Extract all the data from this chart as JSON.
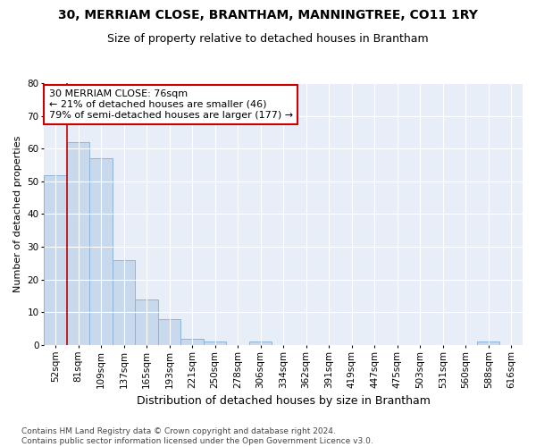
{
  "title": "30, MERRIAM CLOSE, BRANTHAM, MANNINGTREE, CO11 1RY",
  "subtitle": "Size of property relative to detached houses in Brantham",
  "xlabel": "Distribution of detached houses by size in Brantham",
  "ylabel": "Number of detached properties",
  "categories": [
    "52sqm",
    "81sqm",
    "109sqm",
    "137sqm",
    "165sqm",
    "193sqm",
    "221sqm",
    "250sqm",
    "278sqm",
    "306sqm",
    "334sqm",
    "362sqm",
    "391sqm",
    "419sqm",
    "447sqm",
    "475sqm",
    "503sqm",
    "531sqm",
    "560sqm",
    "588sqm",
    "616sqm"
  ],
  "values": [
    52,
    62,
    57,
    26,
    14,
    8,
    2,
    1,
    0,
    1,
    0,
    0,
    0,
    0,
    0,
    0,
    0,
    0,
    0,
    1,
    0
  ],
  "bar_color": "#c8d9ee",
  "bar_edge_color": "#8db4d8",
  "vline_color": "#cc0000",
  "vline_x_index": 0.5,
  "annotation_text": "30 MERRIAM CLOSE: 76sqm\n← 21% of detached houses are smaller (46)\n79% of semi-detached houses are larger (177) →",
  "annotation_box_color": "#cc0000",
  "ylim": [
    0,
    80
  ],
  "yticks": [
    0,
    10,
    20,
    30,
    40,
    50,
    60,
    70,
    80
  ],
  "footnote": "Contains HM Land Registry data © Crown copyright and database right 2024.\nContains public sector information licensed under the Open Government Licence v3.0.",
  "bg_color": "#e8eef8",
  "title_fontsize": 10,
  "subtitle_fontsize": 9,
  "xlabel_fontsize": 9,
  "ylabel_fontsize": 8,
  "tick_fontsize": 7.5,
  "annotation_fontsize": 8,
  "footnote_fontsize": 6.5
}
